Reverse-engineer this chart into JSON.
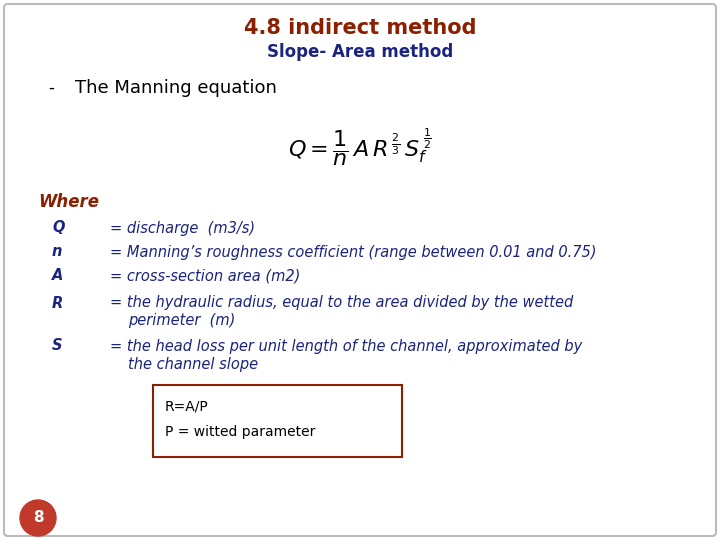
{
  "title1": "4.8 indirect method",
  "title2": "Slope- Area method",
  "title1_color": "#8B2000",
  "title2_color": "#1A237E",
  "bullet_label": "-",
  "bullet_text": "The Manning equation",
  "where_label": "Where",
  "where_color": "#8B2000",
  "var_color": "#1A237E",
  "def_color": "#1A237E",
  "range_color": "#8B2000",
  "box_text1": "R=A/P",
  "box_text2": "P = witted parameter",
  "box_color": "#8B2000",
  "page_num": "8",
  "page_bg": "#C0392B",
  "bg_color": "#FFFFFF",
  "border_color": "#BBBBBB"
}
